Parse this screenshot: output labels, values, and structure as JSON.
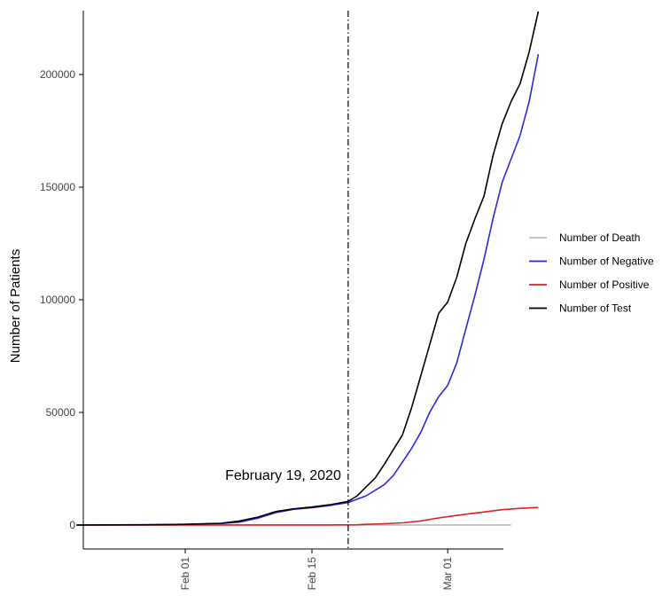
{
  "chart_data": {
    "type": "line",
    "title": "",
    "xlabel": "",
    "ylabel": "Number of Patients",
    "x_axis": {
      "type": "date",
      "range": [
        "2020-01-20",
        "2020-03-09"
      ],
      "ticks": [
        {
          "date": "2020-02-01",
          "label": "Feb 01"
        },
        {
          "date": "2020-02-15",
          "label": "Feb 15"
        },
        {
          "date": "2020-03-01",
          "label": "Mar 01"
        }
      ]
    },
    "y_axis": {
      "range": [
        -11000,
        230000
      ],
      "ticks": [
        0,
        50000,
        100000,
        150000,
        200000
      ]
    },
    "grid": false,
    "legend": "right",
    "annotation": {
      "label": "February 19, 2020",
      "date": "2020-02-19",
      "style": "dot-dash vertical line"
    },
    "series": [
      {
        "name": "Number of Death",
        "color": "#bbbbbb",
        "points": [
          [
            "2020-01-20",
            0
          ],
          [
            "2020-03-08",
            50
          ]
        ]
      },
      {
        "name": "Number of Negative",
        "color": "#2b2bd6",
        "points": [
          [
            "2020-01-20",
            0
          ],
          [
            "2020-01-28",
            100
          ],
          [
            "2020-02-01",
            300
          ],
          [
            "2020-02-05",
            700
          ],
          [
            "2020-02-07",
            1300
          ],
          [
            "2020-02-09",
            3000
          ],
          [
            "2020-02-11",
            5500
          ],
          [
            "2020-02-13",
            7000
          ],
          [
            "2020-02-15",
            7700
          ],
          [
            "2020-02-17",
            8700
          ],
          [
            "2020-02-19",
            10000
          ],
          [
            "2020-02-21",
            13000
          ],
          [
            "2020-02-23",
            18000
          ],
          [
            "2020-02-24",
            22000
          ],
          [
            "2020-02-25",
            28000
          ],
          [
            "2020-02-26",
            34000
          ],
          [
            "2020-02-27",
            41000
          ],
          [
            "2020-02-28",
            50000
          ],
          [
            "2020-02-29",
            57000
          ],
          [
            "2020-03-01",
            62000
          ],
          [
            "2020-03-02",
            72000
          ],
          [
            "2020-03-03",
            87000
          ],
          [
            "2020-03-04",
            102000
          ],
          [
            "2020-03-05",
            118000
          ],
          [
            "2020-03-06",
            136000
          ],
          [
            "2020-03-07",
            152000
          ],
          [
            "2020-03-09",
            173000
          ],
          [
            "2020-03-10",
            188000
          ],
          [
            "2020-03-11",
            209000
          ]
        ]
      },
      {
        "name": "Number of Positive",
        "color": "#dd2222",
        "points": [
          [
            "2020-01-20",
            0
          ],
          [
            "2020-02-17",
            30
          ],
          [
            "2020-02-19",
            60
          ],
          [
            "2020-02-20",
            120
          ],
          [
            "2020-02-21",
            300
          ],
          [
            "2020-02-23",
            600
          ],
          [
            "2020-02-25",
            1000
          ],
          [
            "2020-02-27",
            1800
          ],
          [
            "2020-02-29",
            3150
          ],
          [
            "2020-03-01",
            3700
          ],
          [
            "2020-03-03",
            4800
          ],
          [
            "2020-03-05",
            5800
          ],
          [
            "2020-03-07",
            6800
          ],
          [
            "2020-03-09",
            7400
          ],
          [
            "2020-03-11",
            7800
          ]
        ]
      },
      {
        "name": "Number of Test",
        "color": "#000000",
        "points": [
          [
            "2020-01-20",
            0
          ],
          [
            "2020-01-28",
            100
          ],
          [
            "2020-02-01",
            300
          ],
          [
            "2020-02-05",
            800
          ],
          [
            "2020-02-07",
            1800
          ],
          [
            "2020-02-09",
            3500
          ],
          [
            "2020-02-11",
            6000
          ],
          [
            "2020-02-13",
            7200
          ],
          [
            "2020-02-15",
            8000
          ],
          [
            "2020-02-17",
            9000
          ],
          [
            "2020-02-19",
            10500
          ],
          [
            "2020-02-20",
            13000
          ],
          [
            "2020-02-21",
            17000
          ],
          [
            "2020-02-22",
            21000
          ],
          [
            "2020-02-23",
            27000
          ],
          [
            "2020-02-25",
            40000
          ],
          [
            "2020-02-26",
            52000
          ],
          [
            "2020-02-27",
            66000
          ],
          [
            "2020-02-28",
            80000
          ],
          [
            "2020-02-29",
            94000
          ],
          [
            "2020-03-01",
            99000
          ],
          [
            "2020-03-02",
            110000
          ],
          [
            "2020-03-03",
            125000
          ],
          [
            "2020-03-04",
            136000
          ],
          [
            "2020-03-05",
            146000
          ],
          [
            "2020-03-06",
            164000
          ],
          [
            "2020-03-07",
            178000
          ],
          [
            "2020-03-08",
            188000
          ],
          [
            "2020-03-09",
            196000
          ],
          [
            "2020-03-10",
            210000
          ],
          [
            "2020-03-11",
            228000
          ]
        ]
      }
    ]
  }
}
